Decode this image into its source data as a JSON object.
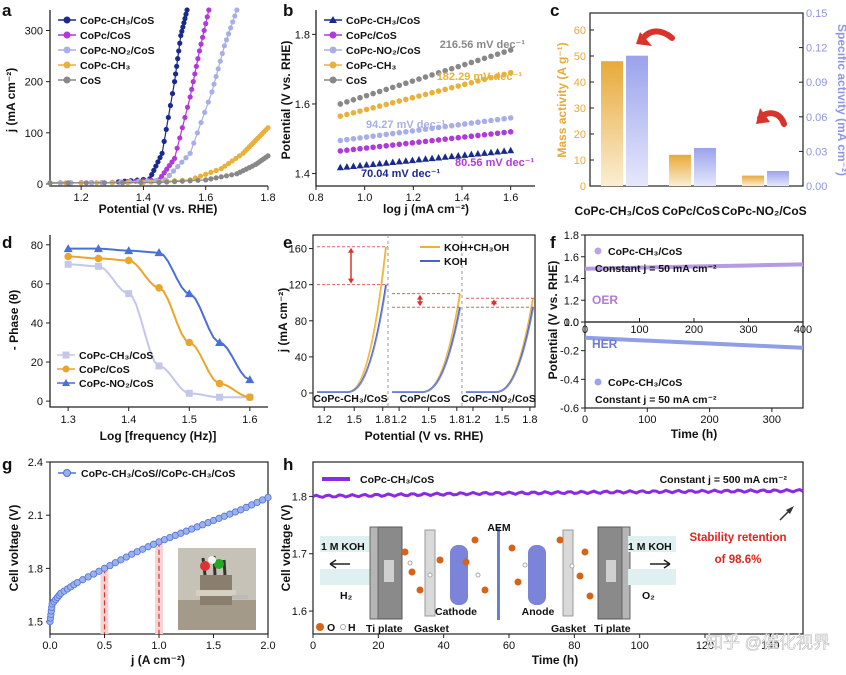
{
  "colors": {
    "navy": "#1a2a8c",
    "purple": "#b03ad9",
    "lavender": "#a9aee6",
    "gold": "#e8b23a",
    "grey": "#888888",
    "blue": "#3d5fd6",
    "orange": "#f0a830",
    "red": "#d9342b"
  },
  "panels": {
    "a": {
      "letter": "a",
      "xlabel": "Potential (V vs. RHE)",
      "ylabel": "j (mA cm⁻²)",
      "xticks": [
        "1.2",
        "1.4",
        "1.6",
        "1.8"
      ],
      "yticks": [
        "0",
        "100",
        "200",
        "300"
      ],
      "legend": [
        "CoPc-CH₃/CoS",
        "CoPc/CoS",
        "CoPc-NO₂/CoS",
        "CoPc-CH₃",
        "CoS"
      ]
    },
    "b": {
      "letter": "b",
      "xlabel": "log j (mA cm⁻²)",
      "ylabel": "Potential (V vs. RHE)",
      "xticks": [
        "0.8",
        "1.0",
        "1.2",
        "1.4",
        "1.6"
      ],
      "yticks": [
        "1.4",
        "1.6",
        "1.8"
      ],
      "legend": [
        "CoPc-CH₃/CoS",
        "CoPc/CoS",
        "CoPc-NO₂/CoS",
        "CoPc-CH₃",
        "CoS"
      ],
      "slopes": [
        "216.56 mV dec⁻¹",
        "182.29 mV dec⁻¹",
        "94.27 mV dec⁻¹",
        "80.56 mV dec⁻¹",
        "70.04 mV dec⁻¹"
      ]
    },
    "c": {
      "letter": "c",
      "ylabel_left": "Mass activity (A g⁻¹)",
      "ylabel_right": "Specific activity (mA cm⁻²)",
      "yticks_left": [
        "0",
        "10",
        "20",
        "30",
        "40",
        "50",
        "60"
      ],
      "yticks_right": [
        "0.00",
        "0.03",
        "0.06",
        "0.09",
        "0.12",
        "0.15"
      ],
      "categories": [
        "CoPc-CH₃/CoS",
        "CoPc/CoS",
        "CoPc-NO₂/CoS"
      ]
    },
    "d": {
      "letter": "d",
      "xlabel": "Log [frequency (Hz)]",
      "ylabel": "- Phase (θ)",
      "xticks": [
        "1.3",
        "1.4",
        "1.5",
        "1.6"
      ],
      "yticks": [
        "0",
        "20",
        "40",
        "60",
        "80"
      ],
      "legend": [
        "CoPc-CH₃/CoS",
        "CoPc/CoS",
        "CoPc-NO₂/CoS"
      ]
    },
    "e": {
      "letter": "e",
      "xlabel": "Potential (V vs. RHE)",
      "ylabel": "j (mA cm⁻²)",
      "yticks": [
        "0",
        "40",
        "80",
        "120",
        "160"
      ],
      "xticks": [
        "1.2",
        "1.5",
        "1.8",
        "1.2",
        "1.5",
        "1.8",
        "1.2",
        "1.5",
        "1.8"
      ],
      "legend": [
        "KOH+CH₃OH",
        "KOH"
      ],
      "subs": [
        "CoPc-CH₃/CoS",
        "CoPc/CoS",
        "CoPc-NO₂/CoS"
      ]
    },
    "f": {
      "letter": "f",
      "xlabel": "Time (h)",
      "ylabel": "Potential (V vs. RHE)",
      "yticks_top": [
        "1.0",
        "1.2",
        "1.4",
        "1.6",
        "1.8"
      ],
      "yticks_bot": [
        "-0.6",
        "-0.4",
        "-0.2",
        "0.0"
      ],
      "xticks_top": [
        "0",
        "100",
        "200",
        "300",
        "400"
      ],
      "xticks_bot": [
        "0",
        "100",
        "200",
        "300"
      ],
      "legend": "CoPc-CH₃/CoS",
      "constant": "Constant j = 50 mA cm⁻²",
      "oer": "OER",
      "her": "HER"
    },
    "g": {
      "letter": "g",
      "xlabel": "j (A cm⁻²)",
      "ylabel": "Cell voltage (V)",
      "xticks": [
        "0.0",
        "0.5",
        "1.0",
        "1.5",
        "2.0"
      ],
      "yticks": [
        "1.5",
        "1.8",
        "2.1",
        "2.4"
      ],
      "legend": "CoPc-CH₃/CoS//CoPc-CH₃/CoS"
    },
    "h": {
      "letter": "h",
      "xlabel": "Time (h)",
      "ylabel": "Cell voltage (V)",
      "xticks": [
        "0",
        "20",
        "40",
        "60",
        "80",
        "100",
        "120",
        "140"
      ],
      "yticks": [
        "1.6",
        "1.7",
        "1.8"
      ],
      "legend": "CoPc-CH₃/CoS",
      "constant": "Constant j = 500 mA cm⁻²",
      "retention1": "Stability retention",
      "retention2": "of 98.6%",
      "labels": {
        "koh_left": "1 M KOH",
        "koh_right": "1 M KOH",
        "h2": "H₂",
        "o2": "O₂",
        "aem": "AEM",
        "cathode": "Cathode",
        "anode": "Anode",
        "ti_left": "Ti plate",
        "ti_right": "Ti plate",
        "gasket_left": "Gasket",
        "gasket_right": "Gasket",
        "o_label": "O",
        "h_label": "H"
      }
    }
  },
  "watermark": "知乎 @催化视界",
  "chart_data": [
    {
      "panel": "a",
      "type": "line",
      "title": "",
      "xlabel": "Potential (V vs. RHE)",
      "ylabel": "j (mA cm⁻²)",
      "xlim": [
        1.1,
        1.8
      ],
      "ylim": [
        0,
        340
      ],
      "series": [
        {
          "name": "CoPc-CH₃/CoS",
          "onset": 1.42,
          "x": [
            1.1,
            1.3,
            1.42,
            1.46,
            1.5,
            1.52,
            1.54
          ],
          "y": [
            2,
            3,
            10,
            60,
            200,
            290,
            340
          ]
        },
        {
          "name": "CoPc/CoS",
          "onset": 1.45,
          "x": [
            1.1,
            1.3,
            1.45,
            1.5,
            1.55,
            1.58,
            1.61
          ],
          "y": [
            2,
            3,
            8,
            50,
            170,
            260,
            340
          ]
        },
        {
          "name": "CoPc-NO₂/CoS",
          "onset": 1.47,
          "x": [
            1.1,
            1.3,
            1.47,
            1.55,
            1.62,
            1.66,
            1.7
          ],
          "y": [
            2,
            3,
            8,
            60,
            180,
            270,
            340
          ]
        },
        {
          "name": "CoPc-CH₃",
          "x": [
            1.1,
            1.4,
            1.55,
            1.65,
            1.72,
            1.76,
            1.8
          ],
          "y": [
            2,
            3,
            8,
            30,
            60,
            85,
            110
          ]
        },
        {
          "name": "CoS",
          "x": [
            1.1,
            1.45,
            1.6,
            1.7,
            1.76,
            1.8
          ],
          "y": [
            2,
            3,
            8,
            20,
            38,
            55
          ]
        }
      ]
    },
    {
      "panel": "b",
      "type": "line",
      "xlabel": "log j (mA cm⁻²)",
      "ylabel": "Potential (V vs. RHE)",
      "xlim": [
        0.8,
        1.7
      ],
      "ylim": [
        1.37,
        1.87
      ],
      "series": [
        {
          "name": "CoS",
          "x": [
            0.9,
            1.6
          ],
          "y": [
            1.6,
            1.755
          ]
        },
        {
          "name": "CoPc-CH₃",
          "x": [
            0.9,
            1.6
          ],
          "y": [
            1.565,
            1.69
          ]
        },
        {
          "name": "CoPc-NO₂/CoS",
          "x": [
            0.9,
            1.6
          ],
          "y": [
            1.495,
            1.56
          ]
        },
        {
          "name": "CoPc/CoS",
          "x": [
            0.9,
            1.6
          ],
          "y": [
            1.465,
            1.52
          ]
        },
        {
          "name": "CoPc-CH₃/CoS",
          "x": [
            0.9,
            1.6
          ],
          "y": [
            1.418,
            1.467
          ]
        }
      ]
    },
    {
      "panel": "c",
      "type": "bar",
      "categories": [
        "CoPc-CH₃/CoS",
        "CoPc/CoS",
        "CoPc-NO₂/CoS"
      ],
      "ylim_left": [
        0,
        60
      ],
      "ylim_right": [
        0,
        0.15
      ],
      "series": [
        {
          "name": "Mass activity",
          "axis": "left",
          "values": [
            48,
            12,
            4
          ]
        },
        {
          "name": "Specific activity",
          "axis": "right",
          "values": [
            0.113,
            0.033,
            0.013
          ]
        }
      ]
    },
    {
      "panel": "d",
      "type": "scatter",
      "xlabel": "Log [frequency (Hz)]",
      "ylabel": "- Phase (θ)",
      "xlim": [
        1.27,
        1.63
      ],
      "ylim": [
        -3,
        85
      ],
      "series": [
        {
          "name": "CoPc-CH₃/CoS",
          "x": [
            1.3,
            1.35,
            1.4,
            1.45,
            1.5,
            1.55,
            1.6
          ],
          "y": [
            70,
            69,
            55,
            18,
            4,
            2,
            2
          ]
        },
        {
          "name": "CoPc/CoS",
          "x": [
            1.3,
            1.35,
            1.4,
            1.45,
            1.5,
            1.55,
            1.6
          ],
          "y": [
            74,
            73,
            72,
            58,
            30,
            9,
            2
          ]
        },
        {
          "name": "CoPc-NO₂/CoS",
          "x": [
            1.3,
            1.35,
            1.4,
            1.45,
            1.5,
            1.55,
            1.6
          ],
          "y": [
            78,
            78,
            77,
            76,
            55,
            30,
            11
          ]
        }
      ]
    },
    {
      "panel": "e",
      "type": "line",
      "ylim": [
        0,
        175
      ],
      "groups": [
        "CoPc-CH₃/CoS",
        "CoPc/CoS",
        "CoPc-NO₂/CoS"
      ],
      "series": [
        {
          "name": "KOH+CH₃OH",
          "peaks": [
            162,
            110,
            105
          ]
        },
        {
          "name": "KOH",
          "peaks": [
            120,
            95,
            95
          ]
        }
      ]
    },
    {
      "panel": "f",
      "type": "line",
      "series": [
        {
          "name": "OER",
          "xlim": [
            0,
            400
          ],
          "ylim": [
            1.0,
            1.8
          ],
          "x": [
            0,
            100,
            200,
            300,
            400
          ],
          "y": [
            1.49,
            1.5,
            1.51,
            1.52,
            1.53
          ]
        },
        {
          "name": "HER",
          "xlim": [
            0,
            350
          ],
          "ylim": [
            -0.6,
            0.0
          ],
          "x": [
            0,
            100,
            200,
            300,
            350
          ],
          "y": [
            -0.11,
            -0.13,
            -0.15,
            -0.17,
            -0.18
          ]
        }
      ]
    },
    {
      "panel": "g",
      "type": "line",
      "xlabel": "j (A cm⁻²)",
      "ylabel": "Cell voltage (V)",
      "xlim": [
        0,
        2
      ],
      "ylim": [
        1.43,
        2.4
      ],
      "series": [
        {
          "name": "CoPc-CH₃/CoS//CoPc-CH₃/CoS",
          "x": [
            0,
            0.02,
            0.1,
            0.25,
            0.5,
            0.75,
            1.0,
            1.25,
            1.5,
            1.75,
            2.0
          ],
          "y": [
            1.5,
            1.6,
            1.66,
            1.72,
            1.8,
            1.88,
            1.95,
            2.01,
            2.07,
            2.13,
            2.2
          ]
        }
      ],
      "markers_at": [
        0.5,
        1.0
      ]
    },
    {
      "panel": "h",
      "type": "line",
      "xlabel": "Time (h)",
      "ylabel": "Cell voltage (V)",
      "xlim": [
        0,
        150
      ],
      "ylim": [
        1.56,
        1.86
      ],
      "series": [
        {
          "name": "CoPc-CH₃/CoS",
          "x": [
            0,
            50,
            100,
            150
          ],
          "y": [
            1.8,
            1.805,
            1.808,
            1.81
          ]
        }
      ]
    }
  ]
}
